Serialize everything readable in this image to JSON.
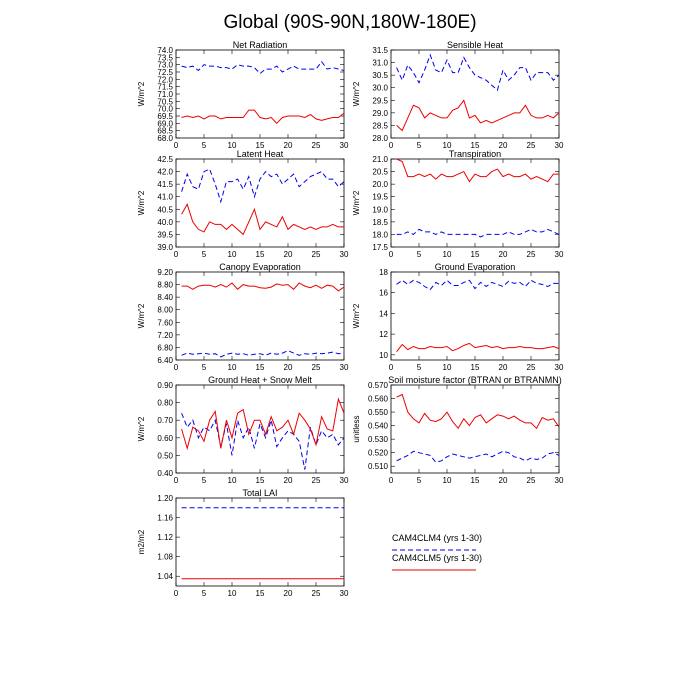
{
  "title": "Global (90S-90N,180W-180E)",
  "legend": [
    {
      "label": "CAM4CLM4 (yrs 1-30)",
      "color": "#0000ee",
      "dash": true
    },
    {
      "label": "CAM4CLM5 (yrs 1-30)",
      "color": "#ee0000",
      "dash": false
    }
  ],
  "chart_data": [
    {
      "type": "line",
      "title": "Net Radiation",
      "ylabel": "W/m^2",
      "xlim": [
        0,
        30
      ],
      "xticks": [
        0,
        5,
        10,
        15,
        20,
        25,
        30
      ],
      "ylim": [
        68.0,
        74.0
      ],
      "yticks": [
        "68.0",
        "68.5",
        "69.0",
        "69.5",
        "70.0",
        "70.5",
        "71.0",
        "71.5",
        "72.0",
        "72.5",
        "73.0",
        "73.5",
        "74.0"
      ],
      "x": [
        1,
        2,
        3,
        4,
        5,
        6,
        7,
        8,
        9,
        10,
        11,
        12,
        13,
        14,
        15,
        16,
        17,
        18,
        19,
        20,
        21,
        22,
        23,
        24,
        25,
        26,
        27,
        28,
        29,
        30
      ],
      "series": [
        {
          "color": "#0000ee",
          "dash": true,
          "values": [
            72.9,
            72.8,
            72.9,
            72.6,
            73.0,
            72.9,
            72.9,
            72.8,
            72.8,
            72.7,
            73.0,
            72.9,
            72.9,
            72.8,
            72.4,
            72.7,
            72.7,
            72.9,
            72.5,
            72.7,
            72.9,
            72.7,
            72.7,
            72.7,
            72.7,
            73.2,
            72.7,
            72.8,
            72.7,
            72.6
          ]
        },
        {
          "color": "#ee0000",
          "dash": false,
          "values": [
            69.4,
            69.5,
            69.4,
            69.5,
            69.3,
            69.5,
            69.5,
            69.3,
            69.4,
            69.4,
            69.4,
            69.4,
            69.9,
            69.9,
            69.4,
            69.3,
            69.4,
            69.0,
            69.4,
            69.5,
            69.5,
            69.5,
            69.4,
            69.6,
            69.3,
            69.2,
            69.3,
            69.4,
            69.4,
            69.7
          ]
        }
      ]
    },
    {
      "type": "line",
      "title": "Sensible Heat",
      "ylabel": "W/m^2",
      "xlim": [
        0,
        30
      ],
      "xticks": [
        0,
        5,
        10,
        15,
        20,
        25,
        30
      ],
      "ylim": [
        28.0,
        31.5
      ],
      "yticks": [
        "28.0",
        "28.5",
        "29.0",
        "29.5",
        "30.0",
        "30.5",
        "31.0",
        "31.5"
      ],
      "x": [
        1,
        2,
        3,
        4,
        5,
        6,
        7,
        8,
        9,
        10,
        11,
        12,
        13,
        14,
        15,
        16,
        17,
        18,
        19,
        20,
        21,
        22,
        23,
        24,
        25,
        26,
        27,
        28,
        29,
        30
      ],
      "series": [
        {
          "color": "#0000ee",
          "dash": true,
          "values": [
            30.8,
            30.3,
            30.9,
            30.6,
            30.2,
            30.7,
            31.3,
            30.7,
            30.6,
            31.1,
            30.6,
            30.6,
            31.2,
            30.8,
            30.5,
            30.4,
            30.3,
            30.1,
            29.9,
            30.7,
            30.3,
            30.5,
            30.8,
            30.8,
            30.3,
            30.6,
            30.6,
            30.6,
            30.3,
            30.5
          ]
        },
        {
          "color": "#ee0000",
          "dash": false,
          "values": [
            28.5,
            28.3,
            28.8,
            29.3,
            29.2,
            28.8,
            29.0,
            28.9,
            28.8,
            28.8,
            29.1,
            29.2,
            29.5,
            28.8,
            28.9,
            28.6,
            28.7,
            28.6,
            28.7,
            28.8,
            28.9,
            29.0,
            29.0,
            29.3,
            28.9,
            28.8,
            28.8,
            28.9,
            28.8,
            29.0
          ]
        }
      ]
    },
    {
      "type": "line",
      "title": "Latent Heat",
      "ylabel": "W/m^2",
      "xlim": [
        0,
        30
      ],
      "xticks": [
        0,
        5,
        10,
        15,
        20,
        25,
        30
      ],
      "ylim": [
        39.0,
        42.5
      ],
      "yticks": [
        "39.0",
        "39.5",
        "40.0",
        "40.5",
        "41.0",
        "41.5",
        "42.0",
        "42.5"
      ],
      "x": [
        1,
        2,
        3,
        4,
        5,
        6,
        7,
        8,
        9,
        10,
        11,
        12,
        13,
        14,
        15,
        16,
        17,
        18,
        19,
        20,
        21,
        22,
        23,
        24,
        25,
        26,
        27,
        28,
        29,
        30
      ],
      "series": [
        {
          "color": "#0000ee",
          "dash": true,
          "values": [
            41.2,
            41.9,
            41.4,
            41.3,
            42.0,
            42.1,
            41.5,
            40.8,
            41.6,
            41.6,
            41.7,
            41.3,
            41.8,
            41.0,
            41.7,
            42.0,
            41.8,
            41.9,
            41.5,
            41.7,
            41.9,
            41.4,
            41.6,
            41.8,
            41.9,
            42.0,
            41.7,
            41.7,
            41.4,
            41.6
          ]
        },
        {
          "color": "#ee0000",
          "dash": false,
          "values": [
            40.3,
            40.7,
            40.0,
            39.7,
            39.6,
            40.0,
            39.9,
            39.9,
            39.7,
            39.9,
            39.7,
            39.5,
            40.0,
            40.5,
            39.7,
            40.0,
            39.9,
            39.8,
            40.2,
            39.7,
            39.9,
            39.8,
            39.7,
            39.8,
            39.7,
            39.8,
            39.8,
            39.9,
            39.8,
            39.8
          ]
        }
      ]
    },
    {
      "type": "line",
      "title": "Transpiration",
      "ylabel": "W/m^2",
      "xlim": [
        0,
        30
      ],
      "xticks": [
        0,
        5,
        10,
        15,
        20,
        25,
        30
      ],
      "ylim": [
        17.5,
        21.0
      ],
      "yticks": [
        "17.5",
        "18.0",
        "18.5",
        "19.0",
        "19.5",
        "20.0",
        "20.5",
        "21.0"
      ],
      "x": [
        1,
        2,
        3,
        4,
        5,
        6,
        7,
        8,
        9,
        10,
        11,
        12,
        13,
        14,
        15,
        16,
        17,
        18,
        19,
        20,
        21,
        22,
        23,
        24,
        25,
        26,
        27,
        28,
        29,
        30
      ],
      "series": [
        {
          "color": "#0000ee",
          "dash": true,
          "values": [
            18.0,
            18.0,
            18.1,
            18.0,
            18.2,
            18.1,
            18.1,
            18.0,
            18.1,
            18.0,
            18.0,
            18.0,
            18.0,
            18.0,
            18.0,
            17.9,
            18.0,
            18.0,
            18.0,
            18.0,
            18.1,
            18.0,
            18.0,
            18.1,
            18.2,
            18.1,
            18.1,
            18.2,
            18.1,
            18.0
          ]
        },
        {
          "color": "#ee0000",
          "dash": false,
          "values": [
            21.0,
            20.9,
            20.3,
            20.3,
            20.4,
            20.3,
            20.4,
            20.2,
            20.4,
            20.3,
            20.3,
            20.4,
            20.5,
            20.1,
            20.4,
            20.3,
            20.3,
            20.5,
            20.6,
            20.3,
            20.4,
            20.3,
            20.3,
            20.4,
            20.2,
            20.3,
            20.2,
            20.1,
            20.4,
            20.4
          ]
        }
      ]
    },
    {
      "type": "line",
      "title": "Canopy Evaporation",
      "ylabel": "W/m^2",
      "xlim": [
        0,
        30
      ],
      "xticks": [
        0,
        5,
        10,
        15,
        20,
        25,
        30
      ],
      "ylim": [
        6.4,
        9.2
      ],
      "yticks": [
        "6.40",
        "6.80",
        "7.20",
        "7.60",
        "8.00",
        "8.40",
        "8.80",
        "9.20"
      ],
      "x": [
        1,
        2,
        3,
        4,
        5,
        6,
        7,
        8,
        9,
        10,
        11,
        12,
        13,
        14,
        15,
        16,
        17,
        18,
        19,
        20,
        21,
        22,
        23,
        24,
        25,
        26,
        27,
        28,
        29,
        30
      ],
      "series": [
        {
          "color": "#0000ee",
          "dash": true,
          "values": [
            6.55,
            6.62,
            6.58,
            6.6,
            6.62,
            6.58,
            6.6,
            6.5,
            6.58,
            6.62,
            6.58,
            6.6,
            6.55,
            6.58,
            6.6,
            6.55,
            6.62,
            6.58,
            6.62,
            6.7,
            6.62,
            6.55,
            6.6,
            6.58,
            6.62,
            6.6,
            6.62,
            6.65,
            6.6,
            6.62
          ]
        },
        {
          "color": "#ee0000",
          "dash": false,
          "values": [
            8.75,
            8.75,
            8.65,
            8.75,
            8.78,
            8.78,
            8.72,
            8.8,
            8.72,
            8.85,
            8.65,
            8.8,
            8.75,
            8.75,
            8.7,
            8.68,
            8.72,
            8.82,
            8.78,
            8.8,
            8.65,
            8.85,
            8.75,
            8.7,
            8.78,
            8.68,
            8.78,
            8.75,
            8.6,
            8.72
          ]
        }
      ]
    },
    {
      "type": "line",
      "title": "Ground Evaporation",
      "ylabel": "W/m^2",
      "xlim": [
        0,
        30
      ],
      "xticks": [
        0,
        5,
        10,
        15,
        20,
        25,
        30
      ],
      "ylim": [
        9.5,
        18.0
      ],
      "yticks": [
        "10",
        "12",
        "14",
        "16",
        "18"
      ],
      "x": [
        1,
        2,
        3,
        4,
        5,
        6,
        7,
        8,
        9,
        10,
        11,
        12,
        13,
        14,
        15,
        16,
        17,
        18,
        19,
        20,
        21,
        22,
        23,
        24,
        25,
        26,
        27,
        28,
        29,
        30
      ],
      "series": [
        {
          "color": "#0000ee",
          "dash": true,
          "values": [
            16.8,
            17.2,
            16.8,
            17.2,
            17.0,
            16.6,
            16.3,
            17.0,
            16.7,
            17.2,
            16.7,
            16.7,
            17.0,
            17.2,
            16.4,
            17.0,
            16.6,
            17.0,
            16.8,
            16.6,
            17.1,
            16.9,
            17.0,
            16.6,
            17.2,
            16.9,
            16.8,
            16.6,
            16.9,
            16.9
          ]
        },
        {
          "color": "#ee0000",
          "dash": false,
          "values": [
            10.3,
            11.0,
            10.5,
            10.8,
            10.6,
            10.6,
            10.8,
            10.7,
            10.7,
            10.8,
            10.4,
            10.6,
            10.9,
            11.1,
            10.7,
            10.8,
            10.9,
            10.7,
            10.8,
            10.6,
            10.7,
            10.7,
            10.8,
            10.7,
            10.7,
            10.6,
            10.6,
            10.7,
            10.8,
            10.6
          ]
        }
      ]
    },
    {
      "type": "line",
      "title": "Ground Heat + Snow Melt",
      "ylabel": "W/m^2",
      "xlim": [
        0,
        30
      ],
      "xticks": [
        0,
        5,
        10,
        15,
        20,
        25,
        30
      ],
      "ylim": [
        0.4,
        0.9
      ],
      "yticks": [
        "0.40",
        "0.50",
        "0.60",
        "0.70",
        "0.80",
        "0.90"
      ],
      "x": [
        1,
        2,
        3,
        4,
        5,
        6,
        7,
        8,
        9,
        10,
        11,
        12,
        13,
        14,
        15,
        16,
        17,
        18,
        19,
        20,
        21,
        22,
        23,
        24,
        25,
        26,
        27,
        28,
        29,
        30
      ],
      "series": [
        {
          "color": "#0000ee",
          "dash": true,
          "values": [
            0.74,
            0.66,
            0.7,
            0.6,
            0.66,
            0.64,
            0.7,
            0.55,
            0.68,
            0.5,
            0.7,
            0.6,
            0.66,
            0.54,
            0.68,
            0.6,
            0.7,
            0.55,
            0.6,
            0.64,
            0.62,
            0.58,
            0.42,
            0.66,
            0.56,
            0.64,
            0.6,
            0.62,
            0.56,
            0.6
          ]
        },
        {
          "color": "#ee0000",
          "dash": false,
          "values": [
            0.65,
            0.54,
            0.66,
            0.64,
            0.58,
            0.7,
            0.75,
            0.54,
            0.7,
            0.6,
            0.74,
            0.76,
            0.62,
            0.7,
            0.7,
            0.62,
            0.72,
            0.64,
            0.66,
            0.7,
            0.62,
            0.74,
            0.7,
            0.65,
            0.56,
            0.72,
            0.65,
            0.64,
            0.82,
            0.74
          ]
        }
      ]
    },
    {
      "type": "line",
      "title": "Soil moisture factor (BTRAN or BTRANMN)",
      "ylabel": "unitless",
      "xlim": [
        0,
        30
      ],
      "xticks": [
        0,
        5,
        10,
        15,
        20,
        25,
        30
      ],
      "ylim": [
        0.505,
        0.57
      ],
      "yticks": [
        "0.510",
        "0.520",
        "0.530",
        "0.540",
        "0.550",
        "0.560",
        "0.570"
      ],
      "x": [
        1,
        2,
        3,
        4,
        5,
        6,
        7,
        8,
        9,
        10,
        11,
        12,
        13,
        14,
        15,
        16,
        17,
        18,
        19,
        20,
        21,
        22,
        23,
        24,
        25,
        26,
        27,
        28,
        29,
        30
      ],
      "series": [
        {
          "color": "#0000ee",
          "dash": true,
          "values": [
            0.514,
            0.516,
            0.518,
            0.521,
            0.52,
            0.519,
            0.518,
            0.513,
            0.514,
            0.517,
            0.519,
            0.518,
            0.517,
            0.516,
            0.517,
            0.518,
            0.519,
            0.517,
            0.519,
            0.521,
            0.52,
            0.517,
            0.516,
            0.514,
            0.516,
            0.515,
            0.516,
            0.519,
            0.52,
            0.518
          ]
        },
        {
          "color": "#ee0000",
          "dash": false,
          "values": [
            0.561,
            0.563,
            0.55,
            0.545,
            0.542,
            0.549,
            0.544,
            0.543,
            0.545,
            0.55,
            0.543,
            0.538,
            0.545,
            0.54,
            0.546,
            0.548,
            0.542,
            0.545,
            0.548,
            0.547,
            0.545,
            0.547,
            0.544,
            0.542,
            0.542,
            0.538,
            0.546,
            0.544,
            0.545,
            0.539
          ]
        }
      ]
    },
    {
      "type": "line",
      "title": "Total LAI",
      "ylabel": "m2/m2",
      "xlim": [
        0,
        30
      ],
      "xticks": [
        0,
        5,
        10,
        15,
        20,
        25,
        30
      ],
      "ylim": [
        1.02,
        1.2
      ],
      "yticks": [
        "1.04",
        "1.08",
        "1.12",
        "1.16",
        "1.20"
      ],
      "x": [
        1,
        2,
        3,
        4,
        5,
        6,
        7,
        8,
        9,
        10,
        11,
        12,
        13,
        14,
        15,
        16,
        17,
        18,
        19,
        20,
        21,
        22,
        23,
        24,
        25,
        26,
        27,
        28,
        29,
        30
      ],
      "series": [
        {
          "color": "#0000ee",
          "dash": true,
          "values": [
            1.18,
            1.18,
            1.18,
            1.18,
            1.18,
            1.18,
            1.18,
            1.18,
            1.18,
            1.18,
            1.18,
            1.18,
            1.18,
            1.18,
            1.18,
            1.18,
            1.18,
            1.18,
            1.18,
            1.18,
            1.18,
            1.18,
            1.18,
            1.18,
            1.18,
            1.18,
            1.18,
            1.18,
            1.18,
            1.18
          ]
        },
        {
          "color": "#ee0000",
          "dash": false,
          "values": [
            1.035,
            1.035,
            1.035,
            1.035,
            1.035,
            1.035,
            1.035,
            1.035,
            1.035,
            1.035,
            1.035,
            1.035,
            1.035,
            1.035,
            1.035,
            1.035,
            1.035,
            1.035,
            1.035,
            1.035,
            1.035,
            1.035,
            1.035,
            1.035,
            1.035,
            1.035,
            1.035,
            1.035,
            1.035,
            1.035
          ]
        }
      ]
    }
  ]
}
